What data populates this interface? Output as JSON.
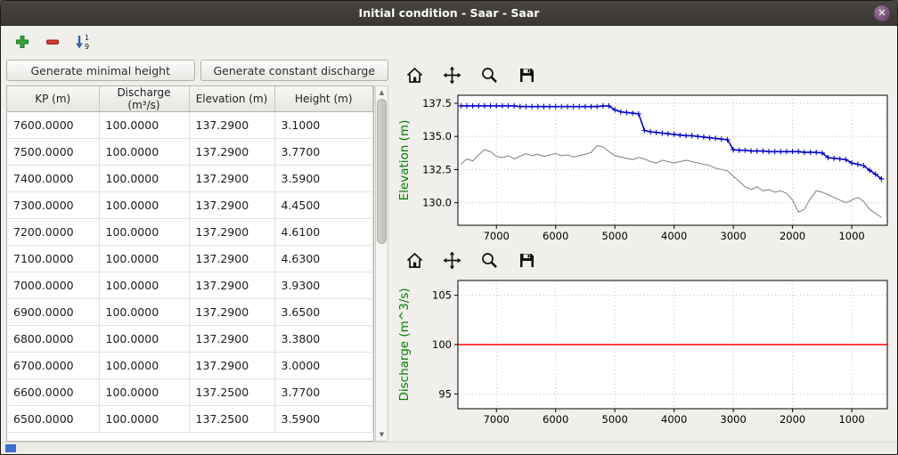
{
  "window": {
    "title": "Initial condition - Saar - Saar"
  },
  "colors": {
    "titlebar": "#3c3a36",
    "close_button": "#6e4b6e",
    "ylabel_green": "#008000",
    "water_line": "#0000cc",
    "bed_line": "#888888",
    "discharge_line": "#ff0000",
    "status_indicator": "#3a6fd8"
  },
  "toolbar": {
    "buttons": [
      {
        "name": "add-row",
        "icon": "plus-icon"
      },
      {
        "name": "remove-row",
        "icon": "minus-icon"
      },
      {
        "name": "sort-rows",
        "icon": "sort-numeric-icon"
      }
    ]
  },
  "left_panel": {
    "buttons": [
      {
        "label": "Generate minimal height"
      },
      {
        "label": "Generate constant discharge"
      }
    ],
    "table": {
      "columns": [
        "KP (m)",
        "Discharge (m³/s)",
        "Elevation (m)",
        "Height (m)"
      ],
      "rows": [
        [
          "7600.0000",
          "100.0000",
          "137.2900",
          "3.1000"
        ],
        [
          "7500.0000",
          "100.0000",
          "137.2900",
          "3.7700"
        ],
        [
          "7400.0000",
          "100.0000",
          "137.2900",
          "3.5900"
        ],
        [
          "7300.0000",
          "100.0000",
          "137.2900",
          "4.4500"
        ],
        [
          "7200.0000",
          "100.0000",
          "137.2900",
          "4.6100"
        ],
        [
          "7100.0000",
          "100.0000",
          "137.2900",
          "4.6300"
        ],
        [
          "7000.0000",
          "100.0000",
          "137.2900",
          "3.9300"
        ],
        [
          "6900.0000",
          "100.0000",
          "137.2900",
          "3.6500"
        ],
        [
          "6800.0000",
          "100.0000",
          "137.2900",
          "3.3800"
        ],
        [
          "6700.0000",
          "100.0000",
          "137.2900",
          "3.0000"
        ],
        [
          "6600.0000",
          "100.0000",
          "137.2500",
          "3.7700"
        ],
        [
          "6500.0000",
          "100.0000",
          "137.2500",
          "3.5900"
        ]
      ]
    }
  },
  "plot_toolbar": {
    "buttons": [
      {
        "name": "home"
      },
      {
        "name": "pan"
      },
      {
        "name": "zoom"
      },
      {
        "name": "save"
      }
    ]
  },
  "chart_data": [
    {
      "type": "line",
      "title": "",
      "xlabel": "",
      "ylabel": "Elevation (m)",
      "ylabel_color": "#008000",
      "xlim": [
        7650,
        400
      ],
      "ylim": [
        128.3,
        138.1
      ],
      "x_reversed": true,
      "grid": true,
      "x_ticks": [
        7000,
        6000,
        5000,
        4000,
        3000,
        2000,
        1000
      ],
      "x_tick_labels": [
        "7000",
        "6000",
        "5000",
        "4000",
        "3000",
        "2000",
        "1000"
      ],
      "y_ticks": [
        130.0,
        132.5,
        135.0,
        137.5
      ],
      "y_tick_labels": [
        "130.0",
        "132.5",
        "135.0",
        "137.5"
      ],
      "x": [
        7600,
        7500,
        7400,
        7300,
        7200,
        7100,
        7000,
        6900,
        6800,
        6700,
        6600,
        6500,
        6400,
        6300,
        6200,
        6100,
        6000,
        5900,
        5800,
        5700,
        5600,
        5500,
        5400,
        5300,
        5200,
        5100,
        5000,
        4900,
        4800,
        4700,
        4600,
        4500,
        4400,
        4300,
        4200,
        4100,
        4000,
        3900,
        3800,
        3700,
        3600,
        3500,
        3400,
        3300,
        3200,
        3100,
        3000,
        2900,
        2800,
        2700,
        2600,
        2500,
        2400,
        2300,
        2200,
        2100,
        2000,
        1900,
        1800,
        1700,
        1600,
        1500,
        1400,
        1300,
        1200,
        1100,
        1000,
        900,
        800,
        700,
        600,
        500
      ],
      "series": [
        {
          "name": "water-level",
          "color": "#0000cc",
          "marker": "+",
          "width": 1.6,
          "y": [
            137.3,
            137.3,
            137.3,
            137.3,
            137.3,
            137.3,
            137.3,
            137.3,
            137.3,
            137.3,
            137.25,
            137.25,
            137.25,
            137.25,
            137.25,
            137.25,
            137.25,
            137.25,
            137.25,
            137.25,
            137.25,
            137.25,
            137.25,
            137.25,
            137.3,
            137.3,
            137.0,
            136.85,
            136.8,
            136.75,
            136.7,
            135.45,
            135.35,
            135.3,
            135.25,
            135.2,
            135.15,
            135.1,
            135.05,
            135.05,
            135.0,
            134.95,
            134.9,
            134.85,
            134.8,
            134.75,
            134.0,
            133.95,
            133.95,
            133.9,
            133.9,
            133.9,
            133.85,
            133.85,
            133.85,
            133.85,
            133.85,
            133.85,
            133.8,
            133.8,
            133.8,
            133.75,
            133.4,
            133.35,
            133.3,
            133.25,
            133.0,
            132.9,
            132.8,
            132.45,
            132.15,
            131.8
          ]
        },
        {
          "name": "bed-elevation",
          "color": "#888888",
          "marker": null,
          "width": 1.1,
          "y": [
            132.9,
            133.3,
            133.15,
            133.6,
            134.0,
            133.85,
            133.5,
            133.4,
            133.55,
            133.3,
            133.5,
            133.7,
            133.55,
            133.65,
            133.5,
            133.6,
            133.7,
            133.55,
            133.6,
            133.45,
            133.55,
            133.65,
            133.8,
            134.3,
            134.2,
            133.85,
            133.55,
            133.45,
            133.35,
            133.25,
            133.4,
            133.3,
            133.1,
            133.0,
            133.2,
            133.1,
            133.0,
            133.1,
            133.2,
            133.1,
            133.0,
            132.9,
            132.8,
            132.6,
            132.5,
            132.4,
            132.0,
            131.6,
            131.2,
            131.0,
            131.2,
            130.9,
            131.0,
            130.8,
            130.9,
            130.7,
            130.2,
            129.3,
            129.5,
            130.3,
            130.9,
            130.8,
            130.6,
            130.4,
            130.2,
            130.0,
            130.2,
            130.4,
            130.1,
            129.5,
            129.2,
            128.9
          ]
        }
      ]
    },
    {
      "type": "line",
      "title": "",
      "xlabel": "",
      "ylabel": "Discharge (m^3/s)",
      "ylabel_color": "#008000",
      "xlim": [
        7650,
        400
      ],
      "ylim": [
        93.5,
        106.5
      ],
      "x_reversed": true,
      "grid": true,
      "x_ticks": [
        7000,
        6000,
        5000,
        4000,
        3000,
        2000,
        1000
      ],
      "x_tick_labels": [
        "7000",
        "6000",
        "5000",
        "4000",
        "3000",
        "2000",
        "1000"
      ],
      "y_ticks": [
        95,
        100,
        105
      ],
      "y_tick_labels": [
        "95",
        "100",
        "105"
      ],
      "series": [
        {
          "name": "discharge",
          "color": "#ff0000",
          "marker": null,
          "width": 1.4,
          "x": [
            7650,
            400
          ],
          "y": [
            100,
            100
          ]
        }
      ]
    }
  ]
}
